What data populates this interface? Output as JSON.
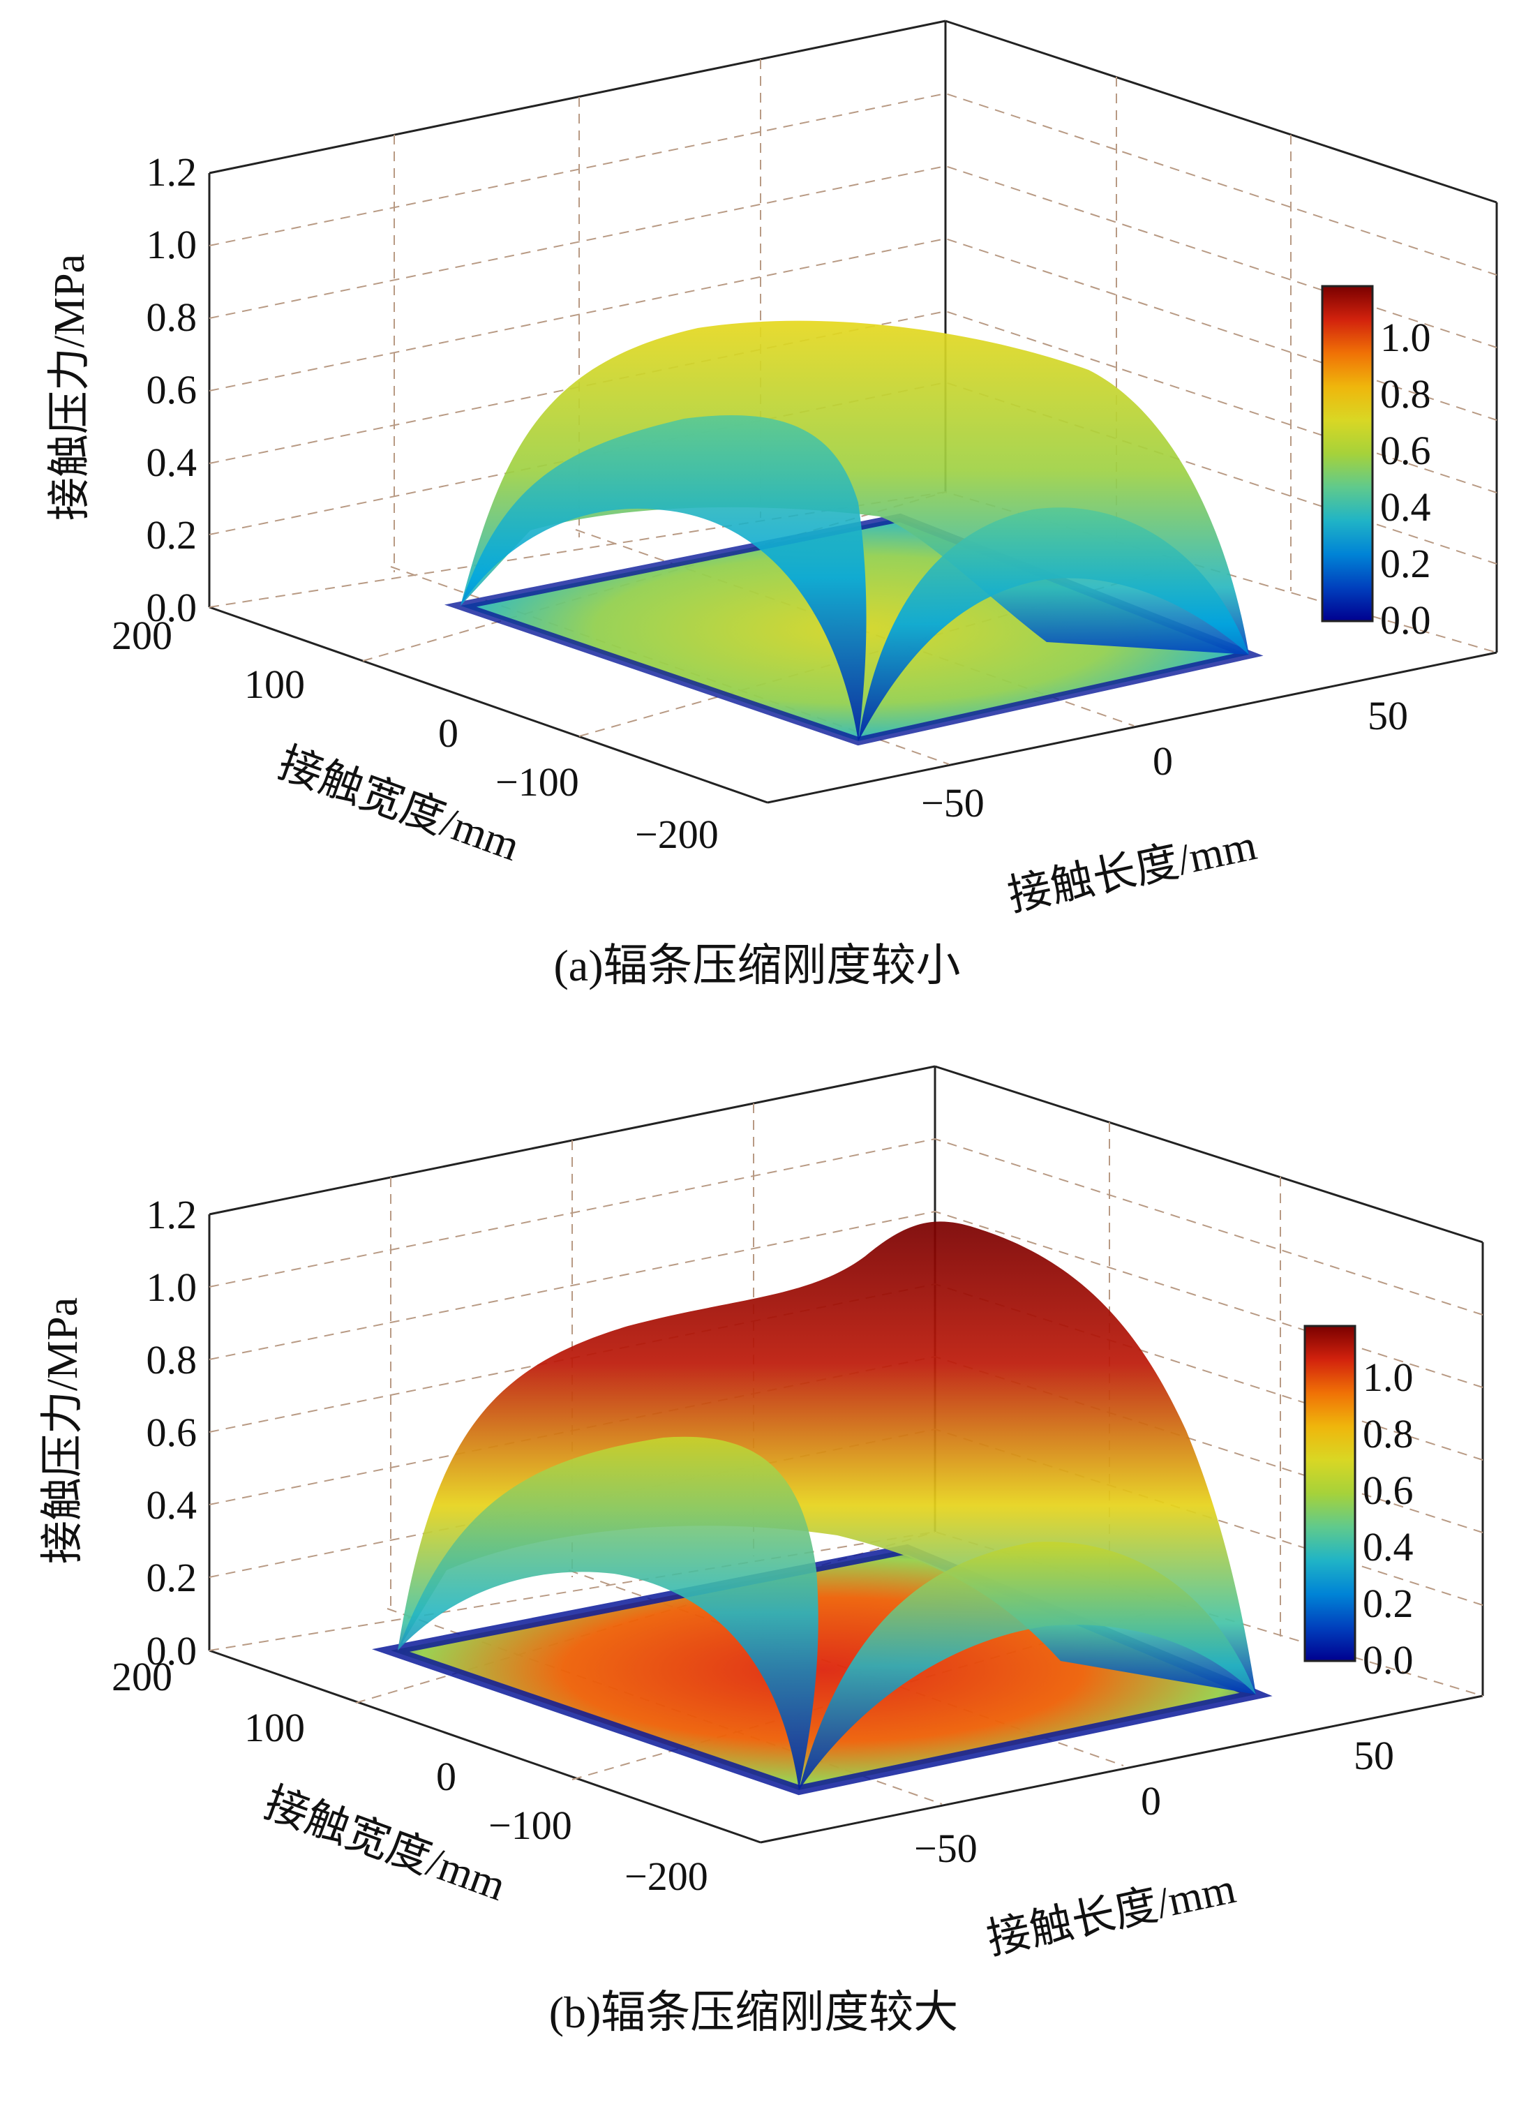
{
  "chart_data": [
    {
      "type": "surface3d",
      "caption": "(a)辐条压缩刚度较小",
      "zlabel": "接触压力/MPa",
      "ylabel": "接触宽度/mm",
      "xlabel": "接触长度/mm",
      "zlim": [
        0,
        1.2
      ],
      "z_ticks": [
        "0.0",
        "0.2",
        "0.4",
        "0.6",
        "0.8",
        "1.0",
        "1.2"
      ],
      "y_ticks": [
        "200",
        "100",
        "0",
        "−100",
        "−200"
      ],
      "x_ticks": [
        "−50",
        "0",
        "50"
      ],
      "colorbar": {
        "range": [
          0,
          1.15
        ],
        "ticks": [
          "0.0",
          "0.2",
          "0.4",
          "0.6",
          "0.8",
          "1.0"
        ]
      },
      "peak_pressure": 0.72,
      "floor_peak_pressure": 0.68
    },
    {
      "type": "surface3d",
      "caption": "(b)辐条压缩刚度较大",
      "zlabel": "接触压力/MPa",
      "ylabel": "接触宽度/mm",
      "xlabel": "接触长度/mm",
      "zlim": [
        0,
        1.2
      ],
      "z_ticks": [
        "0.0",
        "0.2",
        "0.4",
        "0.6",
        "0.8",
        "1.0",
        "1.2"
      ],
      "y_ticks": [
        "200",
        "100",
        "0",
        "−100",
        "−200"
      ],
      "x_ticks": [
        "−50",
        "0",
        "50"
      ],
      "colorbar": {
        "range": [
          0,
          1.15
        ],
        "ticks": [
          "0.0",
          "0.2",
          "0.4",
          "0.6",
          "0.8",
          "1.0"
        ]
      },
      "peak_pressure": 1.18,
      "floor_peak_pressure": 1.02
    }
  ],
  "colormap": [
    "#00008f",
    "#0050c8",
    "#00a6e0",
    "#4fc8a0",
    "#a6d23a",
    "#e6d81e",
    "#f5a000",
    "#e82a10",
    "#7a0000"
  ]
}
